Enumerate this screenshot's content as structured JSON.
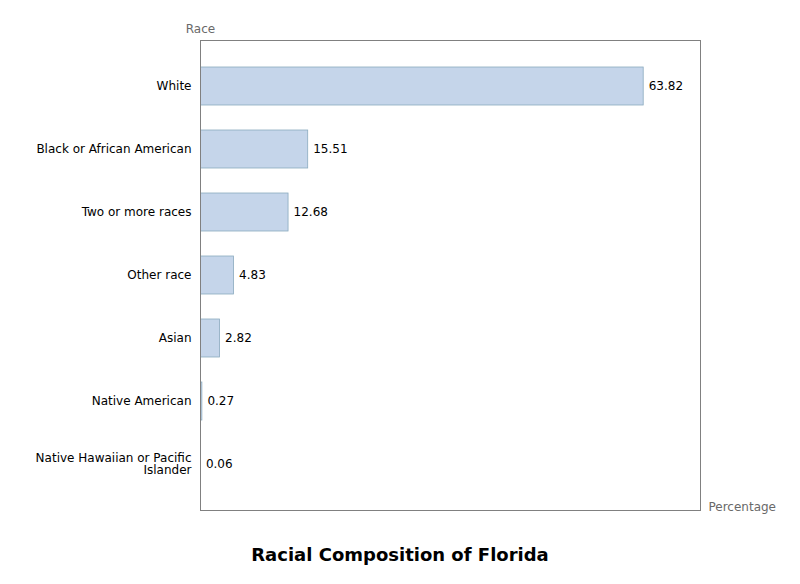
{
  "chart_data": {
    "type": "bar",
    "orientation": "horizontal",
    "title": "Racial Composition of Florida",
    "xlabel": "Percentage",
    "ylabel": "Race",
    "categories": [
      "Native Hawaiian or Pacific\nIslander",
      "Native American",
      "Asian",
      "Other race",
      "Two or more races",
      "Black or African American",
      "White"
    ],
    "values": [
      0.06,
      0.27,
      2.82,
      4.83,
      12.68,
      15.51,
      63.82
    ],
    "color": "#c5d5ea",
    "xlim": [
      0,
      72
    ],
    "tick_labels": "y",
    "data_labels": true,
    "grid": false
  }
}
